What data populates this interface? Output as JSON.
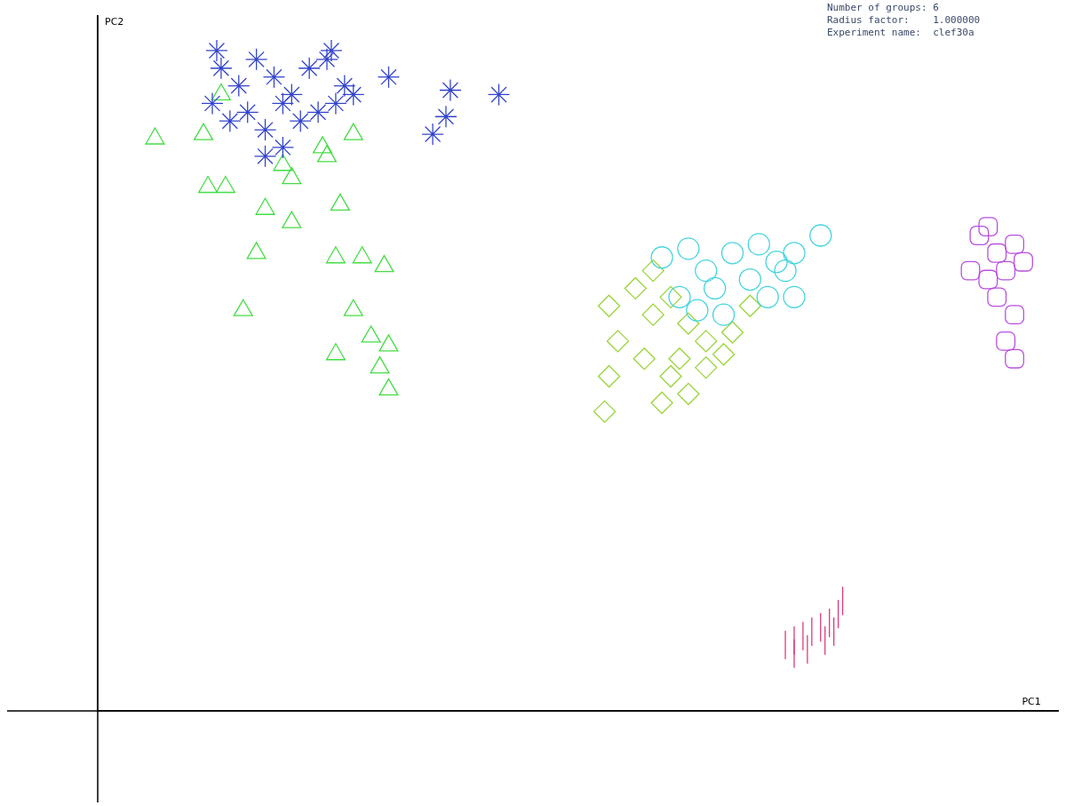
{
  "chart_data": {
    "type": "scatter",
    "xlabel": "PC1",
    "ylabel": "PC2",
    "annotations": [
      "Number of groups: 6",
      "Radius factor:    1.000000",
      "Experiment name:  clef30a"
    ],
    "xlim": [
      0,
      1090
    ],
    "ylim": [
      0,
      790
    ],
    "tick_labels": false,
    "grid": false,
    "series": [
      {
        "color": "#3344cc",
        "marker": "star",
        "x": [
          140,
          160,
          180,
          200,
          220,
          240,
          260,
          280,
          130,
          150,
          170,
          190,
          210,
          230,
          250,
          270,
          290,
          190,
          210,
          330,
          400,
          455,
          380,
          395,
          265,
          135
        ],
        "values": [
          730,
          710,
          740,
          720,
          700,
          730,
          740,
          710,
          690,
          670,
          680,
          660,
          690,
          670,
          680,
          690,
          700,
          630,
          640,
          720,
          705,
          700,
          655,
          675,
          750,
          750
        ]
      },
      {
        "color": "#44dd44",
        "marker": "triangle",
        "x": [
          65,
          120,
          140,
          125,
          145,
          190,
          220,
          210,
          255,
          275,
          290,
          180,
          270,
          300,
          325,
          165,
          290,
          270,
          310,
          330,
          320,
          330,
          260,
          220
        ],
        "values": [
          650,
          655,
          700,
          595,
          595,
          570,
          555,
          620,
          640,
          575,
          655,
          520,
          515,
          515,
          505,
          455,
          455,
          405,
          425,
          415,
          390,
          365,
          630,
          605
        ]
      },
      {
        "color": "#44d4dc",
        "marker": "circle",
        "x": [
          640,
          670,
          690,
          720,
          750,
          770,
          790,
          820,
          660,
          700,
          740,
          780,
          790,
          710,
          680,
          760
        ],
        "values": [
          515,
          525,
          500,
          520,
          530,
          510,
          520,
          540,
          470,
          480,
          490,
          500,
          470,
          450,
          455,
          470
        ]
      },
      {
        "color": "#9ad43a",
        "marker": "rectRot",
        "x": [
          580,
          610,
          630,
          650,
          670,
          690,
          720,
          740,
          590,
          620,
          650,
          670,
          575,
          580,
          640,
          660,
          710,
          630,
          690
        ],
        "values": [
          460,
          480,
          450,
          470,
          440,
          420,
          430,
          460,
          420,
          400,
          380,
          360,
          340,
          380,
          350,
          400,
          405,
          500,
          390
        ]
      },
      {
        "color": "#b94fe0",
        "marker": "rectRounded",
        "x": [
          1000,
          1020,
          1040,
          990,
          1010,
          1030,
          1050,
          1020,
          1040,
          1030,
          1040,
          1010
        ],
        "values": [
          540,
          520,
          530,
          500,
          490,
          500,
          510,
          470,
          450,
          420,
          400,
          550
        ]
      },
      {
        "color": "#e03a7a",
        "marker": "line",
        "x": [
          780,
          790,
          800,
          810,
          820,
          830,
          840,
          845,
          790,
          805,
          825,
          835
        ],
        "values": [
          75,
          80,
          85,
          90,
          95,
          100,
          110,
          125,
          65,
          70,
          80,
          90
        ]
      }
    ]
  }
}
